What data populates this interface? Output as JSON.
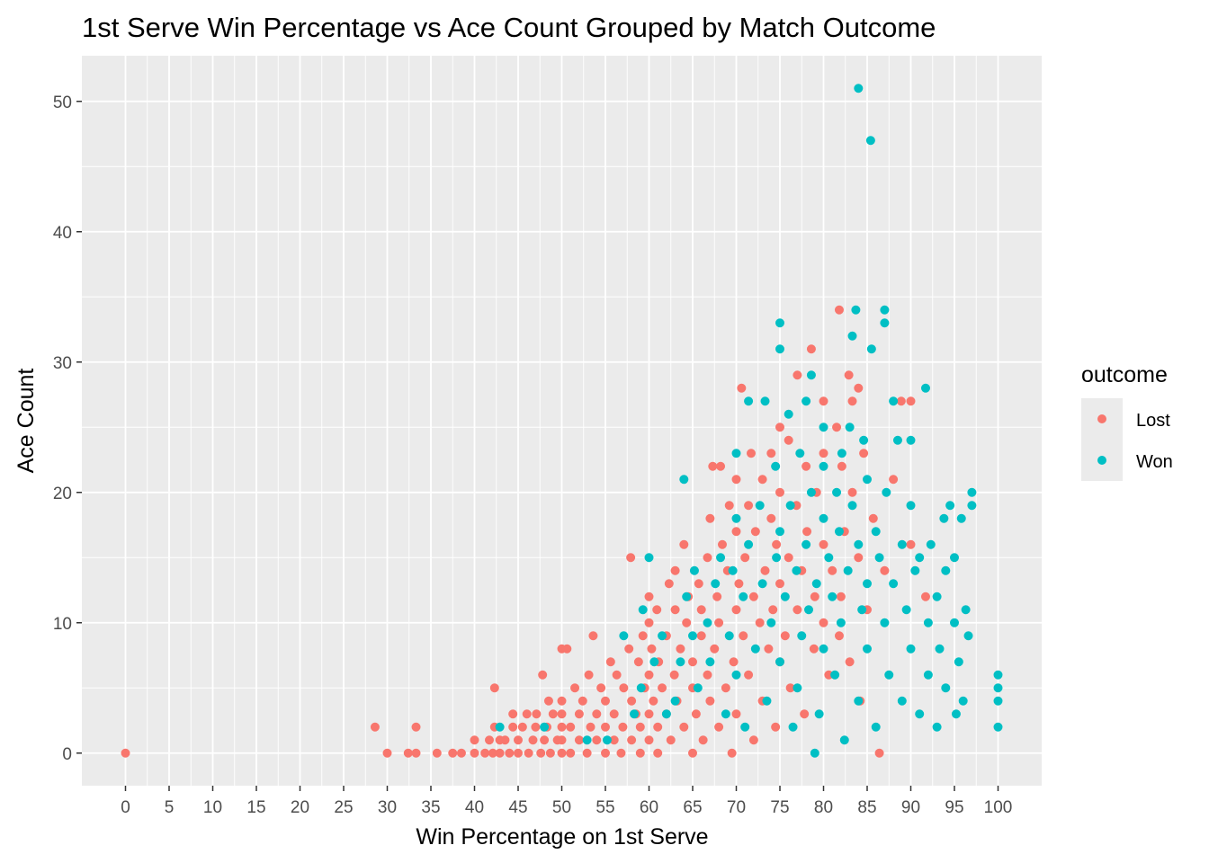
{
  "chart_data": {
    "type": "scatter",
    "title": "1st Serve Win Percentage vs Ace Count Grouped by Match Outcome",
    "xlabel": "Win Percentage on 1st Serve",
    "ylabel": "Ace Count",
    "xlim": [
      -5,
      105
    ],
    "ylim": [
      -2.5,
      53.5
    ],
    "x_ticks": [
      0,
      5,
      10,
      15,
      20,
      25,
      30,
      35,
      40,
      45,
      50,
      55,
      60,
      65,
      70,
      75,
      80,
      85,
      90,
      95,
      100
    ],
    "y_ticks": [
      0,
      10,
      20,
      30,
      40,
      50
    ],
    "grid": true,
    "legend": {
      "title": "outcome",
      "position": "right"
    },
    "series": [
      {
        "name": "Lost",
        "color": "#F8766D",
        "points": [
          [
            0,
            0
          ],
          [
            28.6,
            2
          ],
          [
            30,
            0
          ],
          [
            32.4,
            0
          ],
          [
            33.3,
            0
          ],
          [
            33.3,
            2
          ],
          [
            35.7,
            0
          ],
          [
            37.5,
            0
          ],
          [
            38.5,
            0
          ],
          [
            40,
            0
          ],
          [
            40,
            1
          ],
          [
            41.2,
            0
          ],
          [
            41.7,
            1
          ],
          [
            42.1,
            0
          ],
          [
            42.3,
            2
          ],
          [
            42.9,
            0
          ],
          [
            42.9,
            1
          ],
          [
            42.3,
            5
          ],
          [
            43.5,
            1
          ],
          [
            44,
            0
          ],
          [
            44.4,
            2
          ],
          [
            44.4,
            3
          ],
          [
            45,
            0
          ],
          [
            45,
            1
          ],
          [
            45.5,
            2
          ],
          [
            46,
            3
          ],
          [
            46.2,
            0
          ],
          [
            46.7,
            1
          ],
          [
            47,
            2
          ],
          [
            47.1,
            3
          ],
          [
            47.6,
            0
          ],
          [
            47.8,
            6
          ],
          [
            48,
            1
          ],
          [
            48.3,
            2
          ],
          [
            48.5,
            4
          ],
          [
            48.7,
            0
          ],
          [
            49,
            3
          ],
          [
            49.5,
            1
          ],
          [
            50,
            0
          ],
          [
            50,
            1
          ],
          [
            50,
            2
          ],
          [
            50,
            3
          ],
          [
            50,
            4
          ],
          [
            50,
            8
          ],
          [
            50.6,
            8
          ],
          [
            51,
            0
          ],
          [
            51,
            2
          ],
          [
            51.5,
            5
          ],
          [
            52,
            1
          ],
          [
            52,
            3
          ],
          [
            52.4,
            4
          ],
          [
            52.9,
            0
          ],
          [
            53.1,
            6
          ],
          [
            53.3,
            2
          ],
          [
            53.6,
            9
          ],
          [
            54,
            1
          ],
          [
            54,
            3
          ],
          [
            54.5,
            5
          ],
          [
            55,
            0
          ],
          [
            55,
            2
          ],
          [
            55,
            4
          ],
          [
            55.6,
            7
          ],
          [
            56,
            1
          ],
          [
            56,
            3
          ],
          [
            56.3,
            6
          ],
          [
            56.8,
            0
          ],
          [
            57,
            2
          ],
          [
            57.1,
            5
          ],
          [
            57.7,
            8
          ],
          [
            57.9,
            15
          ],
          [
            58,
            1
          ],
          [
            58,
            4
          ],
          [
            58.5,
            3
          ],
          [
            58.8,
            7
          ],
          [
            59,
            0
          ],
          [
            59,
            2
          ],
          [
            59.3,
            9
          ],
          [
            59.5,
            5
          ],
          [
            60,
            1
          ],
          [
            60,
            3
          ],
          [
            60,
            6
          ],
          [
            60,
            10
          ],
          [
            60,
            12
          ],
          [
            60.3,
            8
          ],
          [
            60.5,
            4
          ],
          [
            60.9,
            11
          ],
          [
            61,
            0
          ],
          [
            61,
            2
          ],
          [
            61.1,
            7
          ],
          [
            61.5,
            5
          ],
          [
            62,
            3
          ],
          [
            62,
            9
          ],
          [
            62.3,
            13
          ],
          [
            62.5,
            1
          ],
          [
            62.9,
            6
          ],
          [
            63,
            14
          ],
          [
            63,
            11
          ],
          [
            63.2,
            4
          ],
          [
            63.6,
            8
          ],
          [
            64,
            2
          ],
          [
            64,
            16
          ],
          [
            64.3,
            10
          ],
          [
            64.5,
            12
          ],
          [
            65,
            0
          ],
          [
            65,
            5
          ],
          [
            65,
            7
          ],
          [
            65.4,
            3
          ],
          [
            65.7,
            13
          ],
          [
            66,
            9
          ],
          [
            66,
            11
          ],
          [
            66.2,
            1
          ],
          [
            66.7,
            15
          ],
          [
            66.7,
            6
          ],
          [
            67,
            4
          ],
          [
            67,
            18
          ],
          [
            67.3,
            22
          ],
          [
            67.5,
            8
          ],
          [
            67.8,
            12
          ],
          [
            68,
            2
          ],
          [
            68,
            10
          ],
          [
            68.2,
            22
          ],
          [
            68.4,
            16
          ],
          [
            68.8,
            5
          ],
          [
            69,
            14
          ],
          [
            69.2,
            19
          ],
          [
            69.5,
            0
          ],
          [
            69.7,
            7
          ],
          [
            70,
            11
          ],
          [
            70,
            17
          ],
          [
            70,
            21
          ],
          [
            70,
            3
          ],
          [
            70.3,
            13
          ],
          [
            70.6,
            28
          ],
          [
            70.8,
            9
          ],
          [
            71,
            15
          ],
          [
            71.4,
            6
          ],
          [
            71.4,
            19
          ],
          [
            71.7,
            23
          ],
          [
            72,
            1
          ],
          [
            72,
            12
          ],
          [
            72.2,
            17
          ],
          [
            72.7,
            10
          ],
          [
            73,
            4
          ],
          [
            73,
            21
          ],
          [
            73.3,
            14
          ],
          [
            73.7,
            8
          ],
          [
            74,
            18
          ],
          [
            74,
            23
          ],
          [
            74.2,
            11
          ],
          [
            74.5,
            2
          ],
          [
            74.6,
            16
          ],
          [
            75,
            7
          ],
          [
            75,
            13
          ],
          [
            75,
            20
          ],
          [
            75,
            25
          ],
          [
            75.6,
            9
          ],
          [
            76,
            15
          ],
          [
            76,
            24
          ],
          [
            76.2,
            5
          ],
          [
            76.9,
            19
          ],
          [
            77,
            11
          ],
          [
            77,
            29
          ],
          [
            77.5,
            14
          ],
          [
            77.8,
            3
          ],
          [
            78,
            22
          ],
          [
            78.1,
            17
          ],
          [
            78.6,
            31
          ],
          [
            78.9,
            8
          ],
          [
            79,
            12
          ],
          [
            79.2,
            20
          ],
          [
            80,
            10
          ],
          [
            80,
            16
          ],
          [
            80,
            23
          ],
          [
            80,
            27
          ],
          [
            80.6,
            6
          ],
          [
            81,
            14
          ],
          [
            81.5,
            25
          ],
          [
            81.8,
            9
          ],
          [
            81.8,
            34
          ],
          [
            82,
            12
          ],
          [
            82.1,
            22
          ],
          [
            82.4,
            17
          ],
          [
            82.9,
            29
          ],
          [
            83,
            7
          ],
          [
            83.3,
            20
          ],
          [
            83.3,
            27
          ],
          [
            84,
            15
          ],
          [
            84,
            28
          ],
          [
            84.2,
            4
          ],
          [
            84.6,
            23
          ],
          [
            85,
            11
          ],
          [
            85.7,
            18
          ],
          [
            86.4,
            0
          ],
          [
            87,
            14
          ],
          [
            88,
            21
          ],
          [
            88.9,
            27
          ],
          [
            90,
            16
          ],
          [
            90,
            27
          ],
          [
            91.7,
            12
          ]
        ]
      },
      {
        "name": "Won",
        "color": "#00BFC4",
        "points": [
          [
            42.9,
            2
          ],
          [
            48,
            2
          ],
          [
            52.9,
            1
          ],
          [
            55.2,
            1
          ],
          [
            57.1,
            9
          ],
          [
            58.3,
            3
          ],
          [
            59.3,
            11
          ],
          [
            59.1,
            5
          ],
          [
            60,
            15
          ],
          [
            60.6,
            7
          ],
          [
            61.5,
            9
          ],
          [
            62,
            3
          ],
          [
            63,
            4
          ],
          [
            63.6,
            7
          ],
          [
            64,
            21
          ],
          [
            64.3,
            12
          ],
          [
            65,
            9
          ],
          [
            65.2,
            14
          ],
          [
            65.6,
            5
          ],
          [
            66.7,
            10
          ],
          [
            67,
            7
          ],
          [
            67.6,
            13
          ],
          [
            68.2,
            15
          ],
          [
            68.8,
            3
          ],
          [
            69.2,
            9
          ],
          [
            69.6,
            14
          ],
          [
            70,
            18
          ],
          [
            70,
            23
          ],
          [
            70,
            6
          ],
          [
            70.8,
            12
          ],
          [
            71,
            2
          ],
          [
            71.4,
            27
          ],
          [
            71.4,
            16
          ],
          [
            72.2,
            8
          ],
          [
            72.7,
            19
          ],
          [
            73,
            13
          ],
          [
            73.3,
            27
          ],
          [
            73.5,
            4
          ],
          [
            74,
            10
          ],
          [
            74.5,
            22
          ],
          [
            74.6,
            15
          ],
          [
            75,
            7
          ],
          [
            75,
            17
          ],
          [
            75,
            31
          ],
          [
            75,
            33
          ],
          [
            75.6,
            12
          ],
          [
            76,
            26
          ],
          [
            76.2,
            19
          ],
          [
            76.5,
            2
          ],
          [
            76.9,
            14
          ],
          [
            77,
            5
          ],
          [
            77.3,
            23
          ],
          [
            77.5,
            9
          ],
          [
            78,
            16
          ],
          [
            78,
            27
          ],
          [
            78.3,
            11
          ],
          [
            78.6,
            20
          ],
          [
            78.6,
            29
          ],
          [
            79,
            0
          ],
          [
            79.2,
            13
          ],
          [
            79.5,
            3
          ],
          [
            80,
            8
          ],
          [
            80,
            18
          ],
          [
            80,
            22
          ],
          [
            80,
            25
          ],
          [
            80.6,
            15
          ],
          [
            81,
            12
          ],
          [
            81.3,
            6
          ],
          [
            81.5,
            20
          ],
          [
            81.8,
            17
          ],
          [
            82,
            10
          ],
          [
            82.1,
            23
          ],
          [
            82.4,
            1
          ],
          [
            82.8,
            14
          ],
          [
            83,
            25
          ],
          [
            83.3,
            19
          ],
          [
            83.3,
            32
          ],
          [
            83.7,
            34
          ],
          [
            84,
            4
          ],
          [
            84,
            16
          ],
          [
            84,
            51
          ],
          [
            84.4,
            11
          ],
          [
            84.6,
            24
          ],
          [
            85,
            8
          ],
          [
            85,
            13
          ],
          [
            85,
            21
          ],
          [
            85.4,
            47
          ],
          [
            85.5,
            31
          ],
          [
            86,
            2
          ],
          [
            86,
            17
          ],
          [
            86.4,
            15
          ],
          [
            87,
            10
          ],
          [
            87,
            34
          ],
          [
            87,
            33
          ],
          [
            87.2,
            20
          ],
          [
            87.5,
            6
          ],
          [
            88,
            13
          ],
          [
            88,
            27
          ],
          [
            88.5,
            24
          ],
          [
            89,
            16
          ],
          [
            89,
            4
          ],
          [
            89.5,
            11
          ],
          [
            90,
            19
          ],
          [
            90,
            24
          ],
          [
            90,
            8
          ],
          [
            90.5,
            14
          ],
          [
            91,
            3
          ],
          [
            91,
            15
          ],
          [
            91.7,
            28
          ],
          [
            92,
            10
          ],
          [
            92,
            6
          ],
          [
            92.3,
            16
          ],
          [
            93,
            12
          ],
          [
            93,
            2
          ],
          [
            93.3,
            8
          ],
          [
            93.8,
            18
          ],
          [
            94,
            14
          ],
          [
            94,
            5
          ],
          [
            94.5,
            19
          ],
          [
            95,
            10
          ],
          [
            95,
            15
          ],
          [
            95.2,
            3
          ],
          [
            95.5,
            7
          ],
          [
            95.8,
            18
          ],
          [
            96,
            4
          ],
          [
            96.3,
            11
          ],
          [
            96.6,
            9
          ],
          [
            97,
            20
          ],
          [
            97,
            19
          ],
          [
            100,
            2
          ],
          [
            100,
            4
          ],
          [
            100,
            5
          ],
          [
            100,
            6
          ]
        ]
      }
    ]
  }
}
